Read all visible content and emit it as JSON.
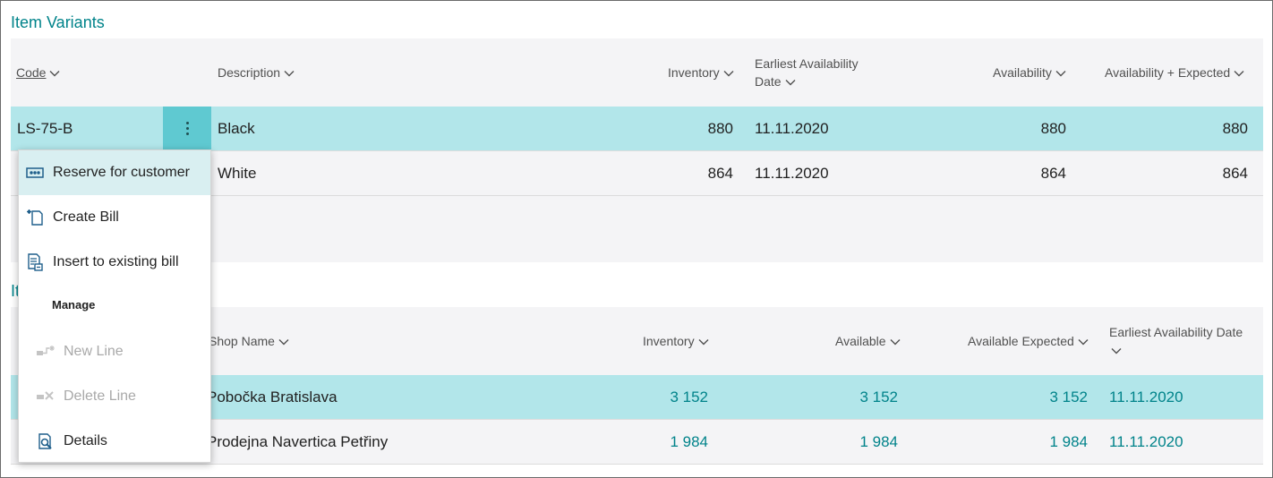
{
  "variants": {
    "title": "Item Variants",
    "columns": {
      "code": "Code",
      "description": "Description",
      "inventory": "Inventory",
      "earliest_line1": "Earliest Availability",
      "earliest_line2": "Date",
      "availability": "Availability",
      "availability_expected": "Availability + Expected"
    },
    "rows": [
      {
        "code": "LS-75-B",
        "description": "Black",
        "inventory": "880",
        "earliest": "11.11.2020",
        "availability": "880",
        "availability_expected": "880"
      },
      {
        "code": "",
        "description": "White",
        "inventory": "864",
        "earliest": "11.11.2020",
        "availability": "864",
        "availability_expected": "864"
      }
    ]
  },
  "shops": {
    "title_partial": "It",
    "columns": {
      "shop_name": "Shop Name",
      "inventory": "Inventory",
      "available": "Available",
      "available_expected": "Available Expected",
      "earliest_line1": "Earliest Availability Date"
    },
    "rows": [
      {
        "shop_name": "Pobočka Bratislava",
        "inventory": "3 152",
        "available": "3 152",
        "available_expected": "3 152",
        "earliest": "11.11.2020"
      },
      {
        "shop_name": "Prodejna Navertica Petřiny",
        "inventory": "1 984",
        "available": "1 984",
        "available_expected": "1 984",
        "earliest": "11.11.2020"
      }
    ]
  },
  "context_menu": {
    "items": [
      {
        "label": "Reserve for customer",
        "icon": "reserve-icon"
      },
      {
        "label": "Create Bill",
        "icon": "new-document-icon"
      },
      {
        "label": "Insert to existing bill",
        "icon": "insert-document-icon"
      }
    ],
    "group_label": "Manage",
    "manage_items": [
      {
        "label": "New Line",
        "icon": "new-line-icon"
      },
      {
        "label": "Delete Line",
        "icon": "delete-line-icon"
      },
      {
        "label": "Details",
        "icon": "details-icon"
      }
    ]
  },
  "colors": {
    "accent": "#00838a",
    "selected_row": "#b2e6ea",
    "dots_button": "#5fc9d1",
    "menu_highlight": "#d9eff1"
  }
}
